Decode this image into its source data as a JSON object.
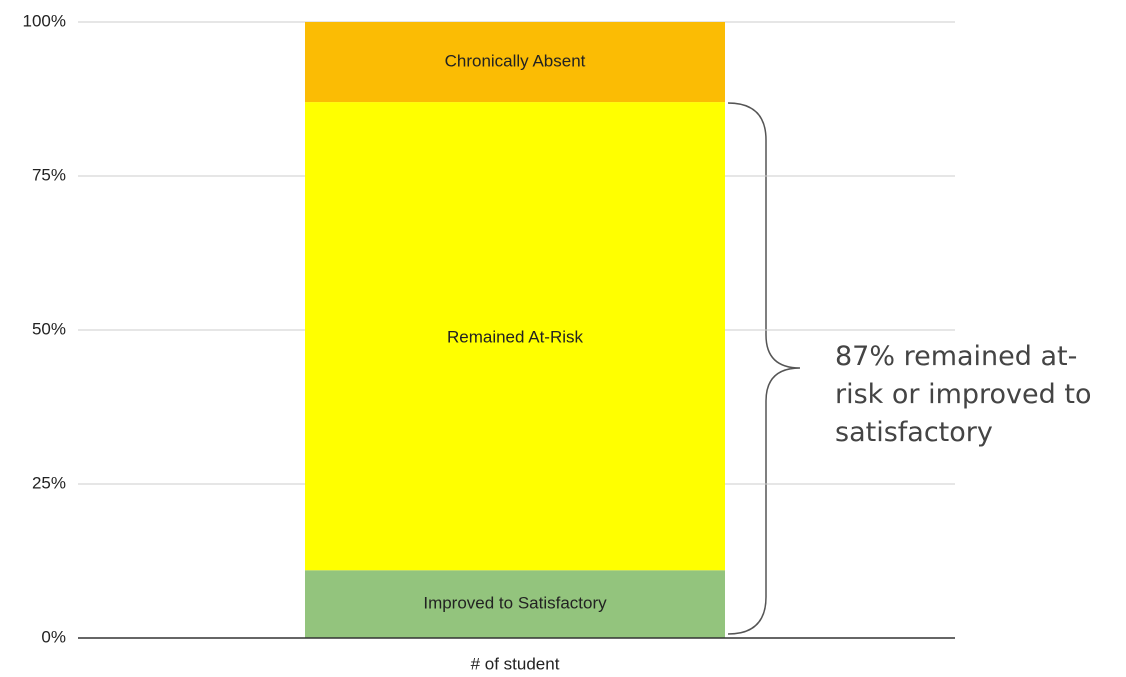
{
  "chart_data": {
    "type": "stacked_bar",
    "categories": [
      "# of student"
    ],
    "series": [
      {
        "name": "Improved to Satisfactory",
        "color": "#93c47d",
        "values": [
          11
        ]
      },
      {
        "name": "Remained At-Risk",
        "color": "#ffff00",
        "values": [
          76
        ]
      },
      {
        "name": "Chronically Absent",
        "color": "#fbbc04",
        "values": [
          13
        ]
      }
    ],
    "ylim": [
      0,
      100
    ],
    "yticks": [
      {
        "value": 0,
        "label": "0%"
      },
      {
        "value": 25,
        "label": "25%"
      },
      {
        "value": 50,
        "label": "50%"
      },
      {
        "value": 75,
        "label": "75%"
      },
      {
        "value": 100,
        "label": "100%"
      }
    ],
    "grid": true,
    "annotation": "87% remained at-risk or improved to satisfactory"
  }
}
